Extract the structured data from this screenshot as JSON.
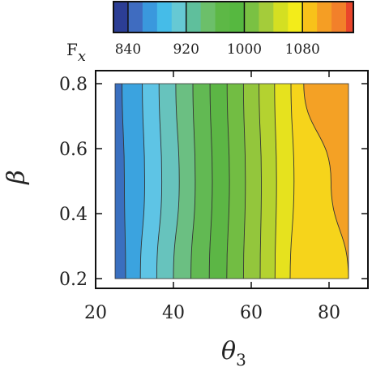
{
  "chart_data": {
    "type": "contour",
    "title": "",
    "xlabel": "θ",
    "xlabel_sub": "3",
    "ylabel": "β",
    "x": [
      25,
      85
    ],
    "y": [
      0.2,
      0.8
    ],
    "xlim": [
      20,
      90
    ],
    "ylim": [
      0.17,
      0.84
    ],
    "xticks": [
      20,
      40,
      60,
      80
    ],
    "yticks": [
      0.2,
      0.4,
      0.6,
      0.8
    ],
    "x_tick_labels": [
      "20",
      "40",
      "60",
      "80"
    ],
    "y_tick_labels": [
      "0.2",
      "0.4",
      "0.6",
      "0.8"
    ],
    "colorbar": {
      "title": "F",
      "title_sub": "x",
      "min": 820,
      "max": 1150,
      "levels": [
        820,
        840,
        860,
        880,
        900,
        920,
        940,
        960,
        980,
        1000,
        1020,
        1040,
        1060,
        1080,
        1100,
        1120,
        1140,
        1150
      ],
      "ticks": [
        840,
        920,
        1000,
        1080
      ],
      "tick_labels": [
        "840",
        "920",
        "1000",
        "1080"
      ],
      "colors": [
        "#2c3e95",
        "#3f6cc0",
        "#3a98dd",
        "#45bce8",
        "#66c9d4",
        "#5fbf9c",
        "#6cbf6a",
        "#5db846",
        "#56b840",
        "#7ac143",
        "#a4cc3a",
        "#d4df22",
        "#f3ec1a",
        "#f8c21a",
        "#f59e24",
        "#f2802a",
        "#e9452b"
      ]
    },
    "field": {
      "description": "Fx vs theta3 (rows: beta)",
      "contour_boundaries_theta3_at_beta": [
        {
          "beta": 0.2,
          "theta3": [
            27.7,
            31.5,
            35.7,
            40.0,
            44.5,
            49.2,
            53.7,
            58.0,
            62.3,
            66.1,
            70.0,
            85.0,
            85.0
          ]
        },
        {
          "beta": 0.5,
          "theta3": [
            27.4,
            32.6,
            37.0,
            41.5,
            45.6,
            50.0,
            54.4,
            58.5,
            62.6,
            66.5,
            71.0,
            80.5,
            85.0
          ]
        },
        {
          "beta": 0.8,
          "theta3": [
            26.8,
            32.0,
            36.3,
            40.6,
            45.0,
            49.4,
            53.8,
            58.0,
            62.0,
            66.0,
            70.2,
            73.5,
            85.0
          ]
        }
      ]
    }
  }
}
